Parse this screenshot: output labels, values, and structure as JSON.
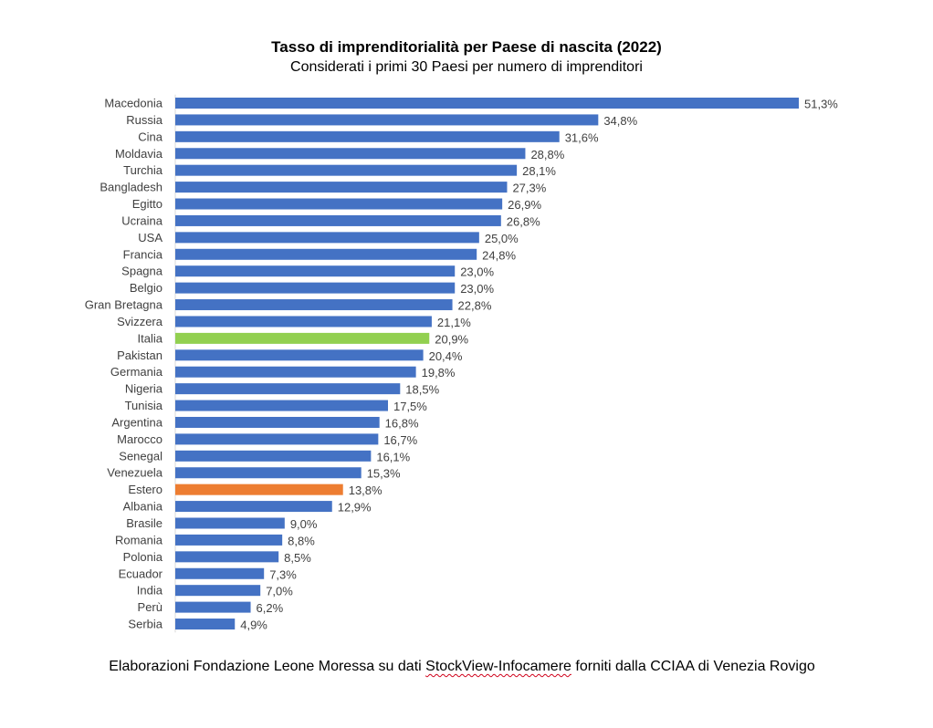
{
  "chart_data": {
    "type": "bar",
    "orientation": "horizontal",
    "title": "Tasso di imprenditorialità per Paese di nascita (2022)",
    "subtitle": "Considerati i primi 30 Paesi per numero di imprenditori",
    "categories": [
      "Macedonia",
      "Russia",
      "Cina",
      "Moldavia",
      "Turchia",
      "Bangladesh",
      "Egitto",
      "Ucraina",
      "USA",
      "Francia",
      "Spagna",
      "Belgio",
      "Gran Bretagna",
      "Svizzera",
      "Italia",
      "Pakistan",
      "Germania",
      "Nigeria",
      "Tunisia",
      "Argentina",
      "Marocco",
      "Senegal",
      "Venezuela",
      "Estero",
      "Albania",
      "Brasile",
      "Romania",
      "Polonia",
      "Ecuador",
      "India",
      "Perù",
      "Serbia"
    ],
    "values": [
      51.3,
      34.8,
      31.6,
      28.8,
      28.1,
      27.3,
      26.9,
      26.8,
      25.0,
      24.8,
      23.0,
      23.0,
      22.8,
      21.1,
      20.9,
      20.4,
      19.8,
      18.5,
      17.5,
      16.8,
      16.7,
      16.1,
      15.3,
      13.8,
      12.9,
      9.0,
      8.8,
      8.5,
      7.3,
      7.0,
      6.2,
      4.9
    ],
    "value_labels": [
      "51,3%",
      "34,8%",
      "31,6%",
      "28,8%",
      "28,1%",
      "27,3%",
      "26,9%",
      "26,8%",
      "25,0%",
      "24,8%",
      "23,0%",
      "23,0%",
      "22,8%",
      "21,1%",
      "20,9%",
      "20,4%",
      "19,8%",
      "18,5%",
      "17,5%",
      "16,8%",
      "16,7%",
      "16,1%",
      "15,3%",
      "13,8%",
      "12,9%",
      "9,0%",
      "8,8%",
      "8,5%",
      "7,3%",
      "7,0%",
      "6,2%",
      "4,9%"
    ],
    "unit": "%",
    "xlim": [
      0,
      51.3
    ],
    "grid": false,
    "colors": {
      "default": "#4472c4",
      "highlight": {
        "Italia": "#92d050",
        "Estero": "#ed7d31"
      }
    }
  },
  "source_note": {
    "prefix": "Elaborazioni Fondazione Leone Moressa su dati ",
    "highlight": "StockView-Infocamere",
    "suffix": " forniti dalla CCIAA di Venezia Rovigo"
  }
}
